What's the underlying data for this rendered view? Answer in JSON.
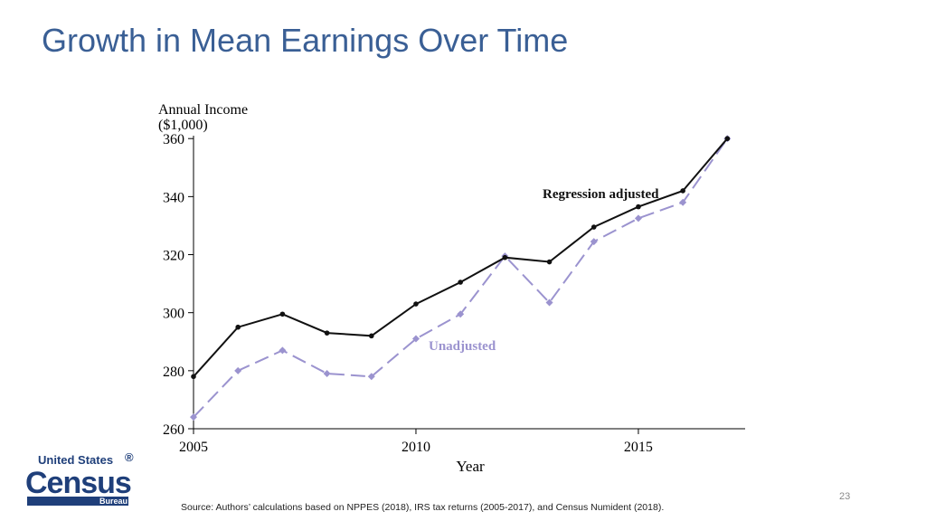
{
  "title": "Growth in Mean Earnings Over Time",
  "page_number": "23",
  "source": "Source: Authors’ calculations based on NPPES (2018), IRS tax returns (2005-2017), and Census Numident (2018).",
  "logo": {
    "line1": "United States",
    "registered": "®",
    "line2": "Census",
    "line3": "Bureau"
  },
  "colors": {
    "title": "#3a5f95",
    "adjusted": "#111111",
    "unadjusted": "#9b93cf",
    "logo": "#1f3f7a"
  },
  "chart_data": {
    "type": "line",
    "ylabel_line1": "Annual Income",
    "ylabel_line2": "($1,000)",
    "xlabel": "Year",
    "xlim": [
      2005,
      2017.4
    ],
    "ylim": [
      260,
      361
    ],
    "xticks": [
      2005,
      2010,
      2015
    ],
    "yticks": [
      260,
      280,
      300,
      320,
      340,
      360
    ],
    "grid": false,
    "x": [
      2005,
      2006,
      2007,
      2008,
      2009,
      2010,
      2011,
      2012,
      2013,
      2014,
      2015,
      2016,
      2017
    ],
    "series": [
      {
        "name": "Regression adjusted",
        "style": "solid",
        "marker": "circle",
        "color": "#111111",
        "values": [
          278,
          295,
          299.5,
          293,
          292,
          303,
          310.5,
          319,
          317.5,
          329.5,
          336.5,
          342,
          360
        ]
      },
      {
        "name": "Unadjusted",
        "style": "dashed",
        "marker": "diamond",
        "color": "#9b93cf",
        "values": [
          264,
          280,
          287,
          279,
          278,
          291,
          299.5,
          319.5,
          303.5,
          324.5,
          332.5,
          338,
          360
        ]
      }
    ]
  }
}
